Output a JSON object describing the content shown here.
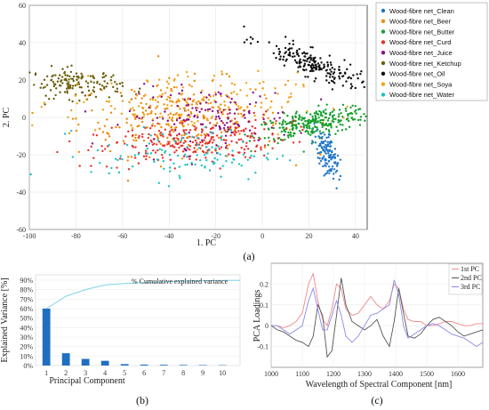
{
  "chart_data": [
    {
      "panel": "(a)",
      "type": "scatter",
      "xlabel": "1. PC",
      "ylabel": "2. PC",
      "xlim": [
        -100,
        45
      ],
      "ylim": [
        -60,
        60
      ],
      "xticks": [
        "-100",
        "-80",
        "-60",
        "-40",
        "-20",
        "0",
        "20",
        "40"
      ],
      "yticks": [
        "-60",
        "-40",
        "-20",
        "0",
        "20",
        "40",
        "60"
      ],
      "legend_position": "right",
      "series": [
        {
          "name": "Wood-fibre net_Clean",
          "color": "#1f77c8",
          "cluster": {
            "cx": 28,
            "cy": -20,
            "sx": 2.2,
            "sy": 7,
            "rot": 0.25,
            "n": 130
          }
        },
        {
          "name": "Wood-fibre net_Beer",
          "color": "#f08a00",
          "cluster": {
            "cx": -35,
            "cy": 0,
            "sx": 22,
            "sy": 10,
            "rot": 0.0,
            "n": 260
          }
        },
        {
          "name": "Wood-fibre net_Butter",
          "color": "#17a02e",
          "cluster": {
            "cx": 22,
            "cy": -3,
            "sx": 13,
            "sy": 3.5,
            "rot": 0.22,
            "n": 280
          }
        },
        {
          "name": "Wood-fibre net_Curd",
          "color": "#e8302c",
          "cluster": {
            "cx": -30,
            "cy": -13,
            "sx": 20,
            "sy": 6,
            "rot": 0.12,
            "n": 260
          }
        },
        {
          "name": "Wood-fibre net_Juice",
          "color": "#8a0d8a",
          "cluster": {
            "cx": -22,
            "cy": 0,
            "sx": 18,
            "sy": 8,
            "rot": 0.0,
            "n": 140
          }
        },
        {
          "name": "Wood-fibre net_Ketchup",
          "color": "#6b5f0a",
          "cluster": {
            "cx": -80,
            "cy": 18,
            "sx": 10,
            "sy": 4,
            "rot": -0.05,
            "n": 150
          }
        },
        {
          "name": "Wood-fibre net_Oil",
          "color": "#111111",
          "cluster": {
            "cx": 22,
            "cy": 28,
            "sx": 12,
            "sy": 3,
            "rot": -0.5,
            "n": 200
          }
        },
        {
          "name": "Wood-fibre net_Soya",
          "color": "#f5a21b",
          "cluster": {
            "cx": -35,
            "cy": 8,
            "sx": 25,
            "sy": 8,
            "rot": 0.0,
            "n": 150
          }
        },
        {
          "name": "Wood-fibre net_Water",
          "color": "#1cc3c3",
          "cluster": {
            "cx": -33,
            "cy": -20,
            "sx": 20,
            "sy": 7,
            "rot": 0.0,
            "n": 110
          }
        }
      ]
    },
    {
      "panel": "(b)",
      "type": "bar",
      "xlabel": "Principal Component",
      "ylabel": "Explained Variance [%]",
      "categories": [
        "1",
        "2",
        "3",
        "4",
        "5",
        "6",
        "7",
        "8",
        "9",
        "10"
      ],
      "values": [
        60,
        13,
        7,
        5,
        1.5,
        1,
        0.8,
        0.6,
        0.5,
        0.4
      ],
      "cumulative": [
        60,
        73,
        80,
        85,
        86.5,
        87.5,
        88.3,
        88.9,
        89.4,
        89.8
      ],
      "ylim": [
        0,
        90
      ],
      "yticks": [
        "0%",
        "10%",
        "20%",
        "30%",
        "40%",
        "50%",
        "60%",
        "70%",
        "80%",
        "90%"
      ],
      "annotation": "% Cumulative explained variance",
      "bar_color": "#1f6fc0",
      "line_color": "#7fd3e6"
    },
    {
      "panel": "(c)",
      "type": "line",
      "xlabel": "Wavelength of Spectral Component [nm]",
      "ylabel": "PCA Loadings",
      "xlim": [
        1000,
        1680
      ],
      "ylim": [
        -0.2,
        0.3
      ],
      "xticks": [
        "1000",
        "1100",
        "1200",
        "1300",
        "1400",
        "1500",
        "1600"
      ],
      "yticks": [
        "-0.1",
        "0",
        "0.1",
        "0.2"
      ],
      "x": [
        1000,
        1020,
        1040,
        1060,
        1080,
        1100,
        1120,
        1135,
        1150,
        1165,
        1180,
        1195,
        1210,
        1225,
        1240,
        1260,
        1280,
        1300,
        1320,
        1340,
        1360,
        1380,
        1395,
        1410,
        1425,
        1440,
        1460,
        1480,
        1500,
        1520,
        1540,
        1560,
        1580,
        1600,
        1620,
        1640,
        1660,
        1680
      ],
      "series": [
        {
          "name": "1st PC",
          "color": "#f08a8a",
          "values": [
            0.0,
            0.0,
            -0.01,
            0.0,
            0.02,
            0.06,
            0.2,
            0.25,
            0.12,
            0.03,
            0.0,
            0.08,
            0.2,
            0.18,
            0.08,
            0.05,
            0.06,
            0.1,
            0.14,
            0.1,
            0.08,
            0.12,
            0.2,
            0.18,
            0.08,
            0.03,
            0.02,
            0.02,
            0.0,
            0.0,
            0.01,
            0.02,
            0.02,
            0.01,
            0.0,
            0.0,
            0.01,
            0.01
          ]
        },
        {
          "name": "2nd PC",
          "color": "#555555",
          "values": [
            0.0,
            -0.02,
            -0.03,
            -0.05,
            -0.07,
            -0.08,
            -0.1,
            -0.05,
            0.1,
            0.05,
            -0.15,
            -0.12,
            0.05,
            0.23,
            0.1,
            0.02,
            0.0,
            -0.02,
            0.0,
            0.03,
            -0.05,
            -0.1,
            0.02,
            0.18,
            0.06,
            -0.05,
            -0.06,
            -0.04,
            0.0,
            0.03,
            0.04,
            0.02,
            0.0,
            -0.03,
            -0.05,
            -0.04,
            -0.03,
            -0.02
          ]
        },
        {
          "name": "3rd PC",
          "color": "#8a8ae8",
          "values": [
            0.0,
            0.0,
            -0.02,
            -0.04,
            -0.02,
            0.0,
            0.12,
            0.18,
            0.08,
            -0.02,
            -0.02,
            0.05,
            0.12,
            0.05,
            -0.05,
            -0.08,
            -0.05,
            0.0,
            0.05,
            0.06,
            0.08,
            0.1,
            0.22,
            0.15,
            0.0,
            -0.06,
            -0.04,
            -0.02,
            0.0,
            0.01,
            0.0,
            -0.02,
            -0.04,
            -0.05,
            -0.06,
            -0.08,
            -0.1,
            -0.08
          ]
        }
      ]
    }
  ]
}
